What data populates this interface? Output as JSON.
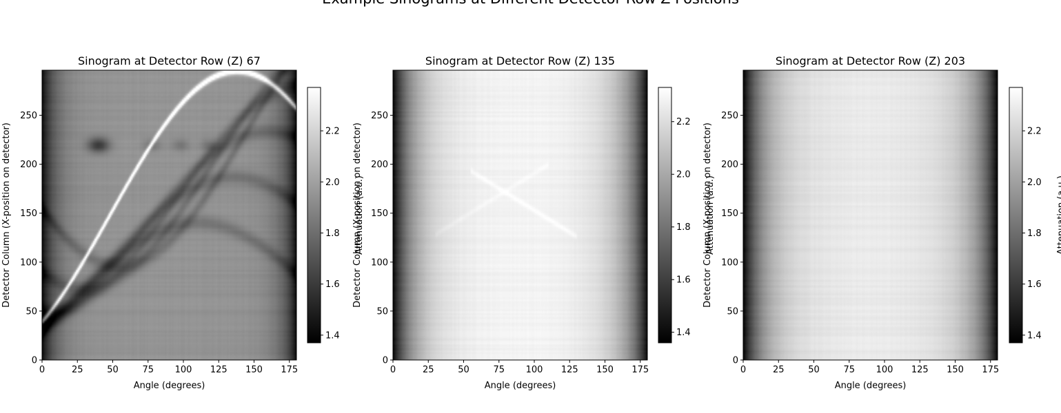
{
  "figure": {
    "suptitle": "Example Sinograms at Different Detector Row Z Positions"
  },
  "chart_data": [
    {
      "type": "heatmap",
      "title": "Sinogram at Detector Row (Z) 67",
      "xlabel": "Angle (degrees)",
      "ylabel": "Detector Column (X-position on detector)",
      "xlim": [
        0,
        180
      ],
      "ylim": [
        0,
        296
      ],
      "xticks": [
        0,
        25,
        50,
        75,
        100,
        125,
        150,
        175
      ],
      "yticks": [
        0,
        50,
        100,
        150,
        200,
        250
      ],
      "colormap": "gray",
      "colorbar": {
        "label": "Attenuation (a.u.)",
        "range": [
          1.37,
          2.37
        ],
        "ticks": [
          1.4,
          1.6,
          1.8,
          2.0,
          2.2
        ]
      },
      "features": {
        "bright_sinusoid": {
          "center": 148,
          "amplitude": 148,
          "phase_deg": 48
        },
        "dark_blob": {
          "angle": 40,
          "column": 220
        }
      }
    },
    {
      "type": "heatmap",
      "title": "Sinogram at Detector Row (Z) 135",
      "xlabel": "Angle (degrees)",
      "ylabel": "Detector Column (X-position on detector)",
      "xlim": [
        0,
        180
      ],
      "ylim": [
        0,
        296
      ],
      "xticks": [
        0,
        25,
        50,
        75,
        100,
        125,
        150,
        175
      ],
      "yticks": [
        0,
        50,
        100,
        150,
        200,
        250
      ],
      "colormap": "gray",
      "colorbar": {
        "label": "Attenuation (a.u.)",
        "range": [
          1.36,
          2.33
        ],
        "ticks": [
          1.4,
          1.6,
          1.8,
          2.0,
          2.2
        ]
      }
    },
    {
      "type": "heatmap",
      "title": "Sinogram at Detector Row (Z) 203",
      "xlabel": "Angle (degrees)",
      "ylabel": "Detector Column (X-position on detector)",
      "xlim": [
        0,
        180
      ],
      "ylim": [
        0,
        296
      ],
      "xticks": [
        0,
        25,
        50,
        75,
        100,
        125,
        150,
        175
      ],
      "yticks": [
        0,
        50,
        100,
        150,
        200,
        250
      ],
      "colormap": "gray",
      "colorbar": {
        "label": "Attenuation (a.u.)",
        "range": [
          1.37,
          2.37
        ],
        "ticks": [
          1.4,
          1.6,
          1.8,
          2.0,
          2.2
        ]
      }
    }
  ]
}
